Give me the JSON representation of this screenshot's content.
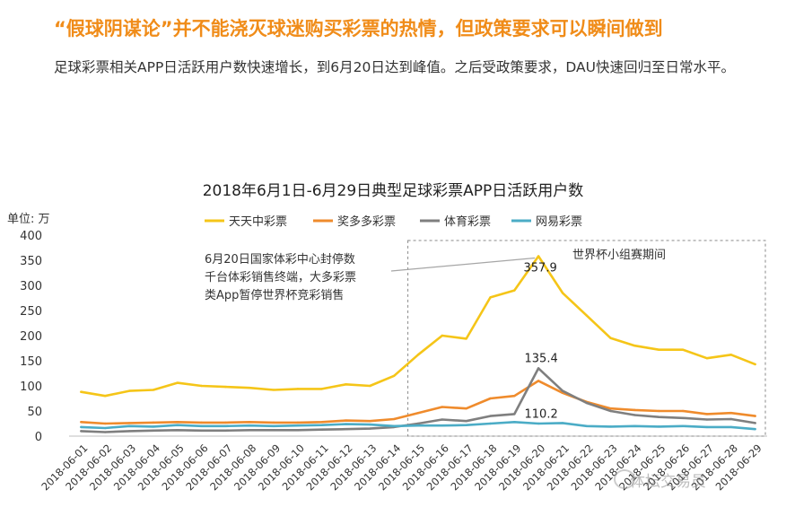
{
  "headline": "“假球阴谋论”并不能浇灭球迷购买彩票的热情，但政策要求可以瞬间做到",
  "subtext": "足球彩票相关APP日活跃用户数快速增长，到6月20日达到峰值。之后受政策要求，DAU快速回归至日常水平。",
  "watermark": "体坛交易员",
  "chart_data": {
    "type": "line",
    "title": "2018年6月1日-6月29日典型足球彩票APP日活跃用户数",
    "unit_label": "单位: 万",
    "ylim": [
      0,
      400
    ],
    "yticks": [
      "0",
      "50",
      "100",
      "150",
      "200",
      "250",
      "300",
      "350",
      "400"
    ],
    "legend_position": "top",
    "categories": [
      "2018-06-01",
      "2018-06-02",
      "2018-06-03",
      "2018-06-04",
      "2018-06-05",
      "2018-06-06",
      "2018-06-07",
      "2018-06-08",
      "2018-06-09",
      "2018-06-10",
      "2018-06-11",
      "2018-06-12",
      "2018-06-13",
      "2018-06-14",
      "2018-06-15",
      "2018-06-16",
      "2018-06-17",
      "2018-06-18",
      "2018-06-19",
      "2018-06-20",
      "2018-06-21",
      "2018-06-22",
      "2018-06-23",
      "2018-06-24",
      "2018-06-25",
      "2018-06-26",
      "2018-06-27",
      "2018-06-28",
      "2018-06-29"
    ],
    "series": [
      {
        "name": "天天中彩票",
        "color": "#f5c518",
        "values": [
          88,
          80,
          90,
          92,
          106,
          100,
          98,
          96,
          92,
          94,
          94,
          103,
          100,
          120,
          162,
          200,
          194,
          276,
          290,
          358,
          285,
          240,
          195,
          180,
          172,
          172,
          155,
          162,
          143
        ]
      },
      {
        "name": "奖多多彩票",
        "color": "#ef8b2c",
        "values": [
          28,
          25,
          26,
          27,
          28,
          27,
          27,
          28,
          27,
          27,
          28,
          31,
          30,
          34,
          46,
          58,
          55,
          75,
          80,
          110,
          86,
          68,
          55,
          52,
          50,
          50,
          44,
          46,
          40
        ]
      },
      {
        "name": "体育彩票",
        "color": "#7f7f7f",
        "values": [
          10,
          8,
          10,
          11,
          12,
          11,
          11,
          12,
          12,
          12,
          13,
          14,
          15,
          18,
          25,
          33,
          30,
          40,
          44,
          135,
          90,
          66,
          50,
          42,
          38,
          36,
          33,
          34,
          26
        ]
      },
      {
        "name": "网易彩票",
        "color": "#4bacc6",
        "values": [
          18,
          16,
          20,
          19,
          22,
          20,
          20,
          21,
          20,
          21,
          22,
          24,
          23,
          20,
          21,
          21,
          22,
          25,
          28,
          25,
          26,
          20,
          19,
          20,
          19,
          20,
          18,
          18,
          14
        ]
      }
    ],
    "data_labels": [
      {
        "text": "357.9",
        "series": 0,
        "index": 19
      },
      {
        "text": "135.4",
        "series": 2,
        "index": 19
      },
      {
        "text": "110.2",
        "series": 1,
        "index": 19
      }
    ],
    "annotation": {
      "lines": [
        "6月20日国家体彩中心封停数",
        "千台体彩销售终端，大多彩票",
        "类App暂停世界杯竞彩销售"
      ],
      "target_index": 19
    },
    "highlight_region": {
      "label": "世界杯小组赛期间",
      "start_index": 14,
      "end_index": 28
    }
  }
}
